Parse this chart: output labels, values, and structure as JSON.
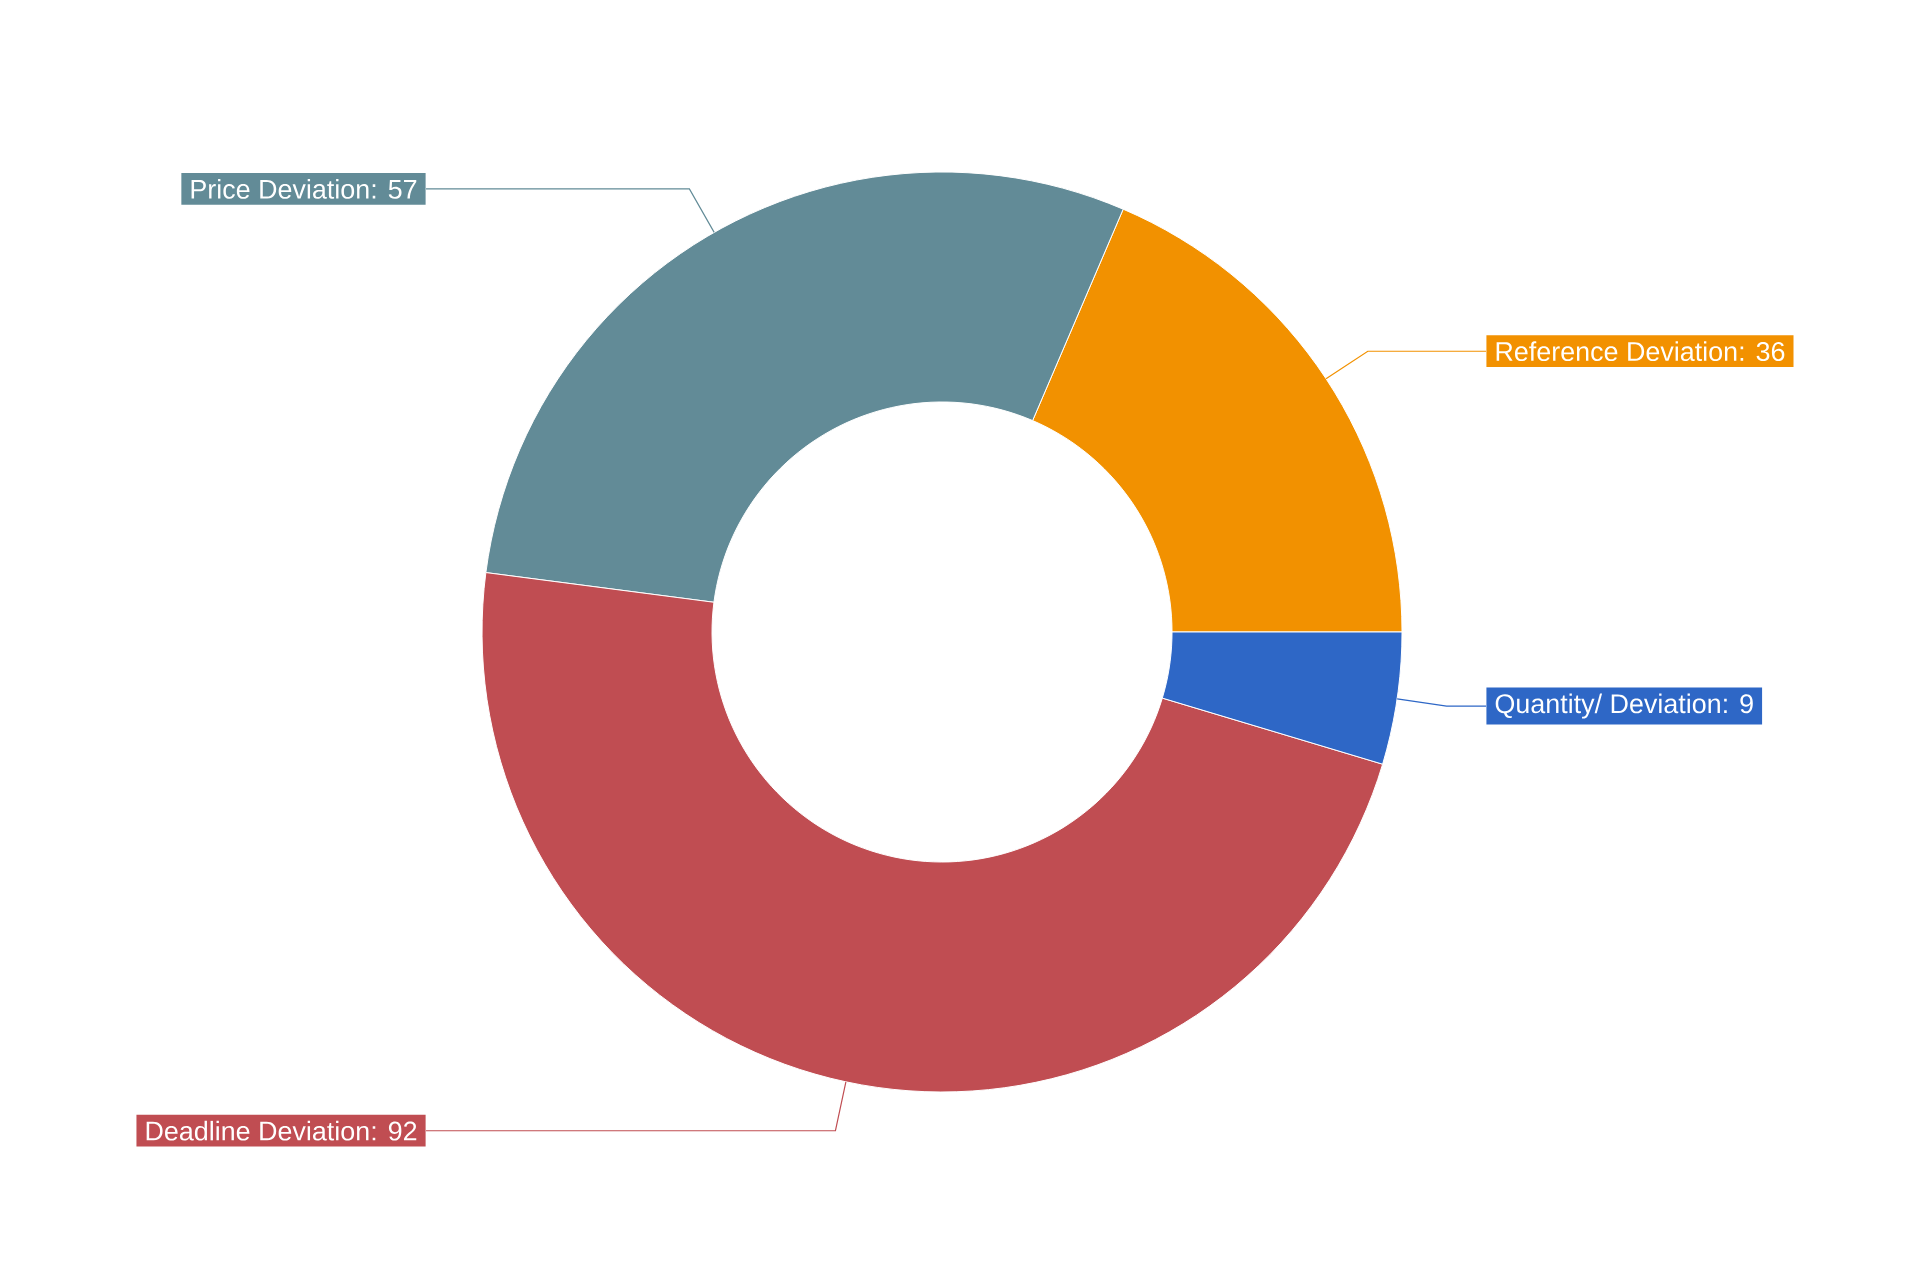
{
  "chart_data": {
    "type": "donut",
    "categories": [
      "Reference Deviation",
      "Price Deviation",
      "Deadline Deviation",
      "Quantity/ Deviation"
    ],
    "values": [
      36,
      57,
      92,
      9
    ],
    "colors": [
      "#f29100",
      "#628b97",
      "#c04d52",
      "#2e67c6"
    ],
    "value_labels": [
      ": 36",
      ": 57",
      ": 92",
      ": 9"
    ]
  }
}
